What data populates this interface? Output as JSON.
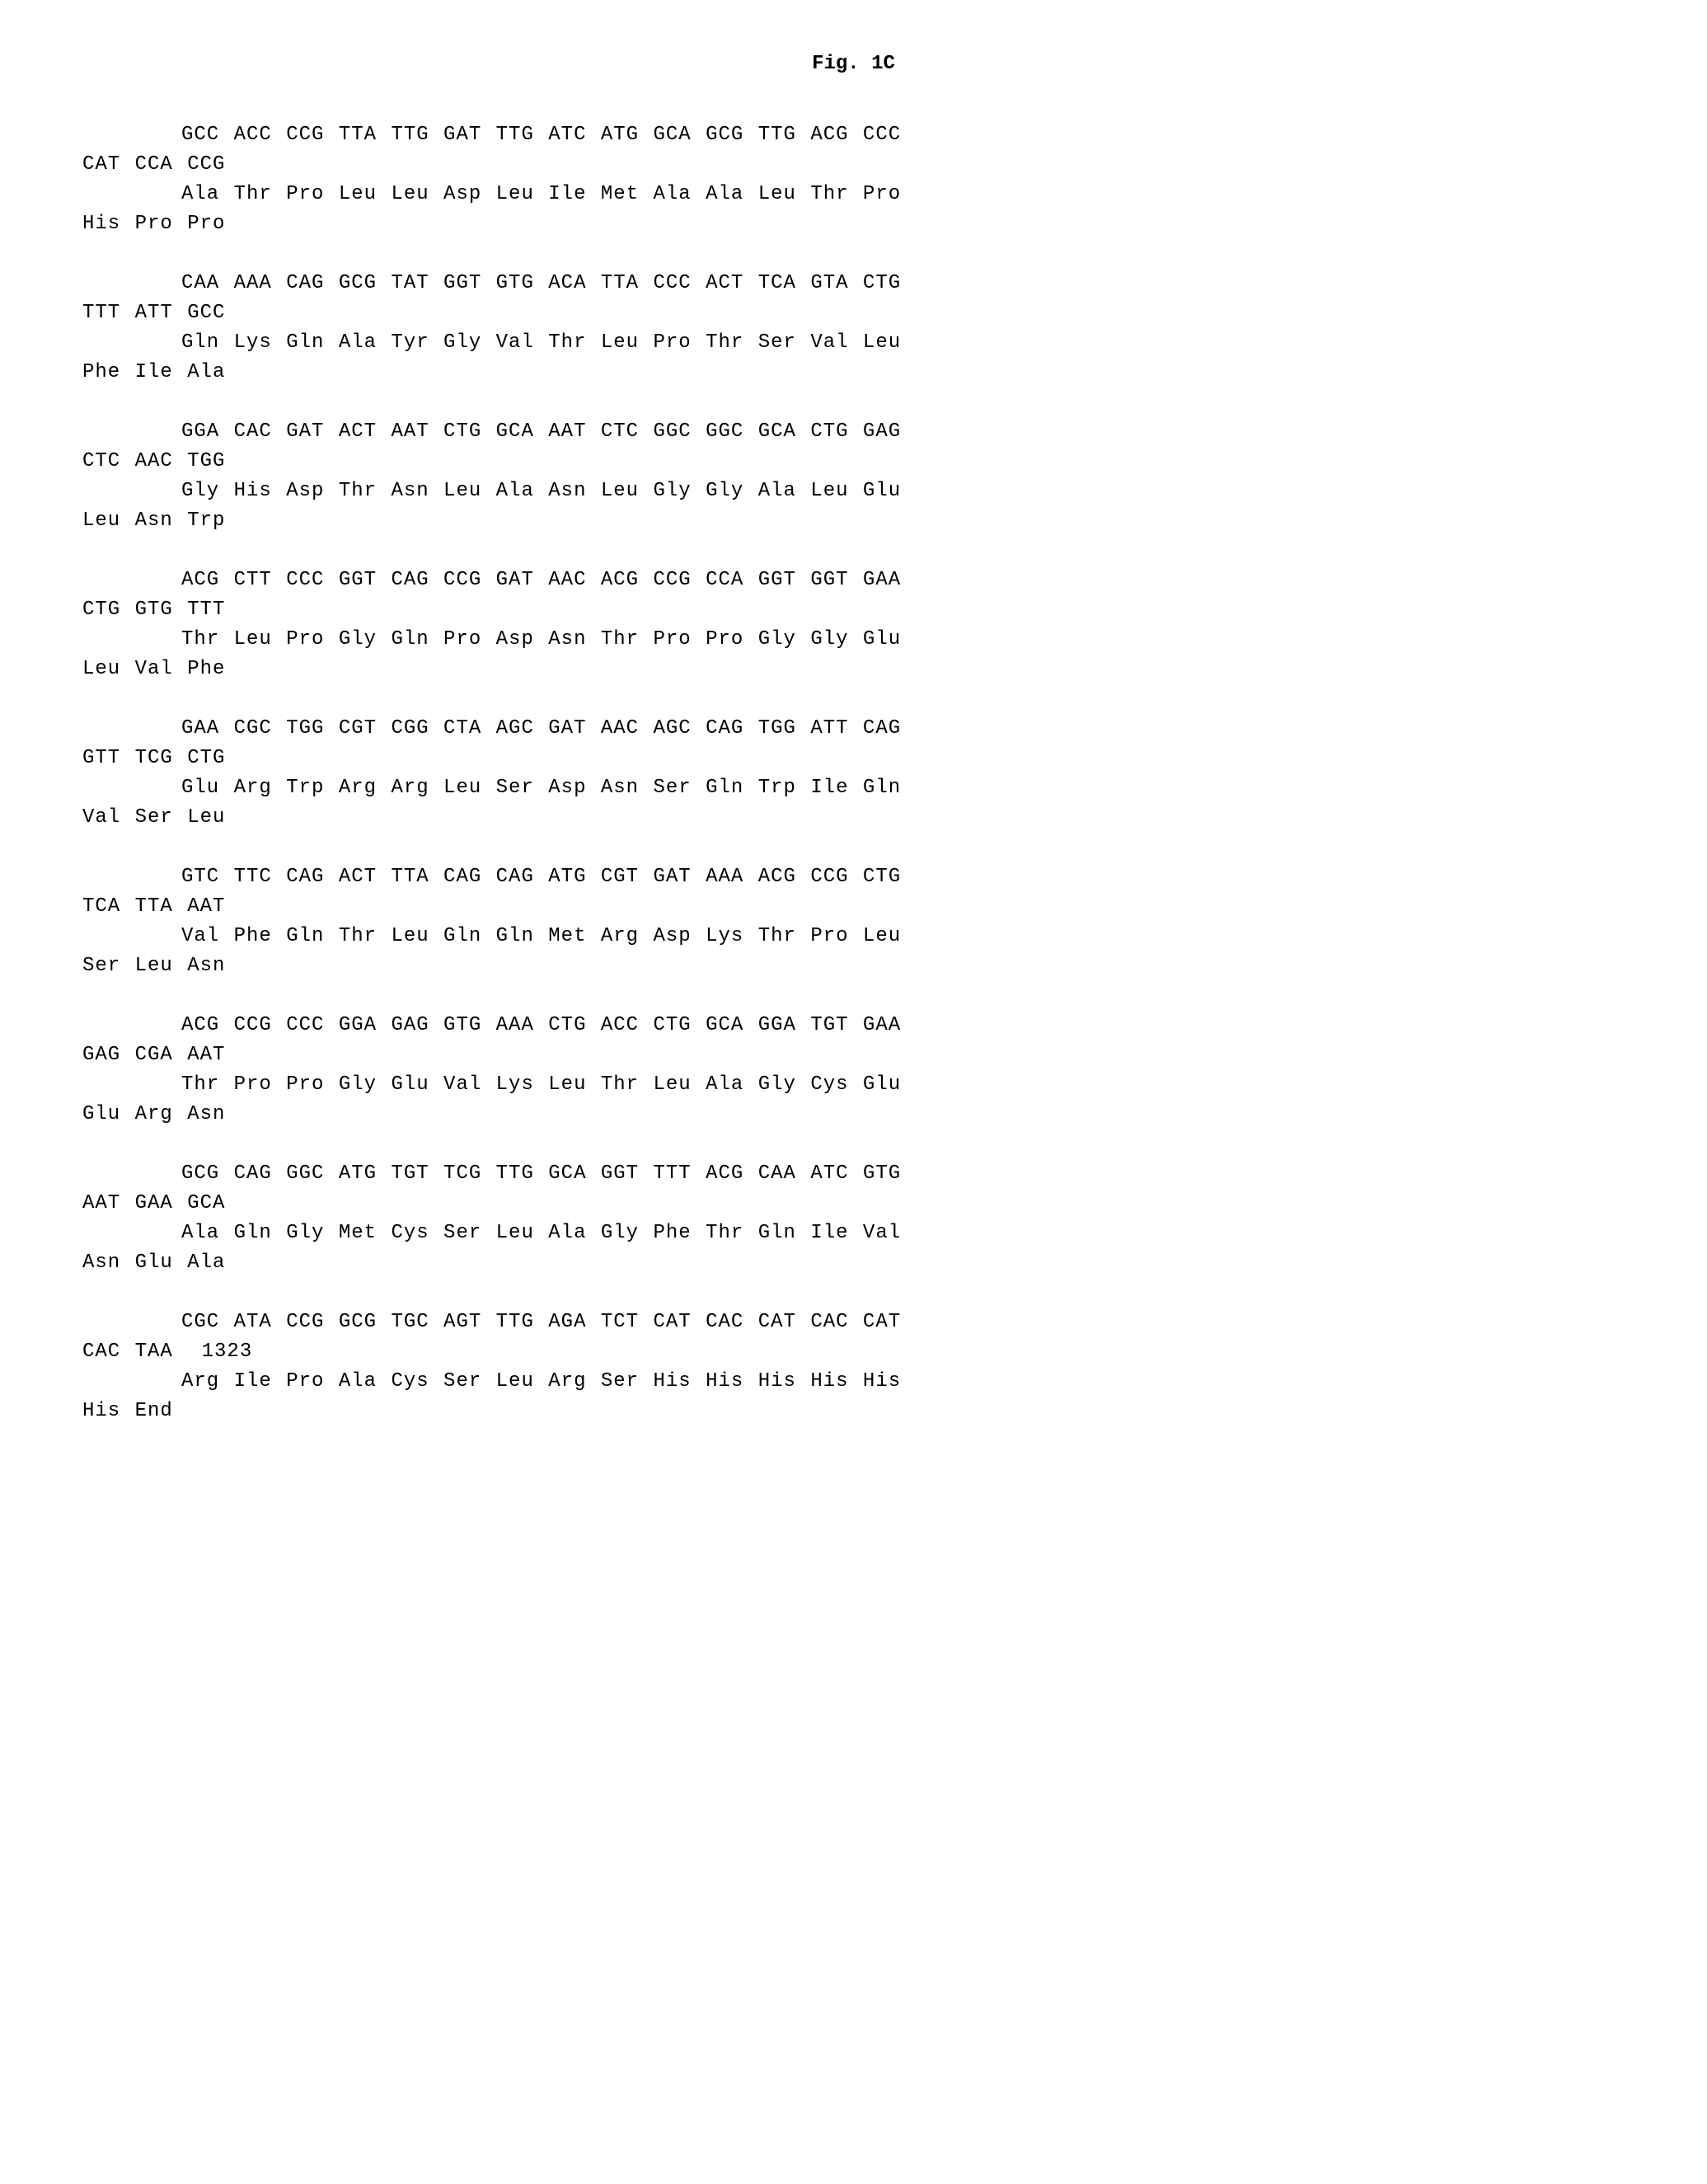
{
  "title": "Fig. 1C",
  "font_family": "Courier New",
  "font_size_pt": 18,
  "background_color": "#ffffff",
  "text_color": "#000000",
  "blocks": [
    {
      "dna1": "GCC ACC CCG TTA TTG GAT TTG ATC ATG GCA GCG TTG ACG CCC",
      "dna2": "CAT CCA CCG",
      "aa1": "Ala Thr Pro Leu Leu Asp Leu Ile Met Ala Ala Leu Thr Pro",
      "aa2": "His Pro Pro"
    },
    {
      "dna1": "CAA AAA CAG GCG TAT GGT GTG ACA TTA CCC ACT TCA GTA CTG",
      "dna2": "TTT ATT GCC",
      "aa1": "Gln Lys Gln Ala Tyr Gly Val Thr Leu Pro Thr Ser Val Leu",
      "aa2": "Phe Ile Ala"
    },
    {
      "dna1": "GGA CAC GAT ACT AAT CTG GCA AAT CTC GGC GGC GCA CTG GAG",
      "dna2": "CTC AAC TGG",
      "aa1": "Gly His Asp Thr Asn Leu Ala Asn Leu Gly Gly Ala Leu Glu",
      "aa2": "Leu Asn Trp"
    },
    {
      "dna1": "ACG CTT CCC GGT CAG CCG GAT AAC ACG CCG CCA GGT GGT GAA",
      "dna2": "CTG GTG TTT",
      "aa1": "Thr Leu Pro Gly Gln Pro Asp Asn Thr Pro Pro Gly Gly Glu",
      "aa2": "Leu Val Phe"
    },
    {
      "dna1": "GAA CGC TGG CGT CGG CTA AGC GAT AAC AGC CAG TGG ATT CAG",
      "dna2": "GTT TCG CTG",
      "aa1": "Glu Arg Trp Arg Arg Leu Ser Asp Asn Ser Gln Trp Ile Gln",
      "aa2": "Val Ser Leu"
    },
    {
      "dna1": "GTC TTC CAG ACT TTA CAG CAG ATG CGT GAT AAA ACG CCG CTG",
      "dna2": "TCA TTA AAT",
      "aa1": "Val Phe Gln Thr Leu Gln Gln Met Arg Asp Lys Thr Pro Leu",
      "aa2": "Ser Leu Asn"
    },
    {
      "dna1": "ACG CCG CCC GGA GAG GTG AAA CTG ACC CTG GCA GGA TGT GAA",
      "dna2": "GAG CGA AAT",
      "aa1": "Thr Pro Pro Gly Glu Val Lys Leu Thr Leu Ala Gly Cys Glu",
      "aa2": "Glu Arg Asn"
    },
    {
      "dna1": "GCG CAG GGC ATG TGT TCG TTG GCA GGT TTT ACG CAA ATC GTG",
      "dna2": "AAT GAA GCA",
      "aa1": "Ala Gln Gly Met Cys Ser Leu Ala Gly Phe Thr Gln Ile Val",
      "aa2": "Asn Glu Ala"
    },
    {
      "dna1": "CGC ATA CCG GCG TGC AGT TTG AGA TCT CAT CAC CAT CAC CAT",
      "dna2": "CAC TAA  1323",
      "aa1": "Arg Ile Pro Ala Cys Ser Leu Arg Ser His His His His His",
      "aa2": "His End"
    }
  ]
}
